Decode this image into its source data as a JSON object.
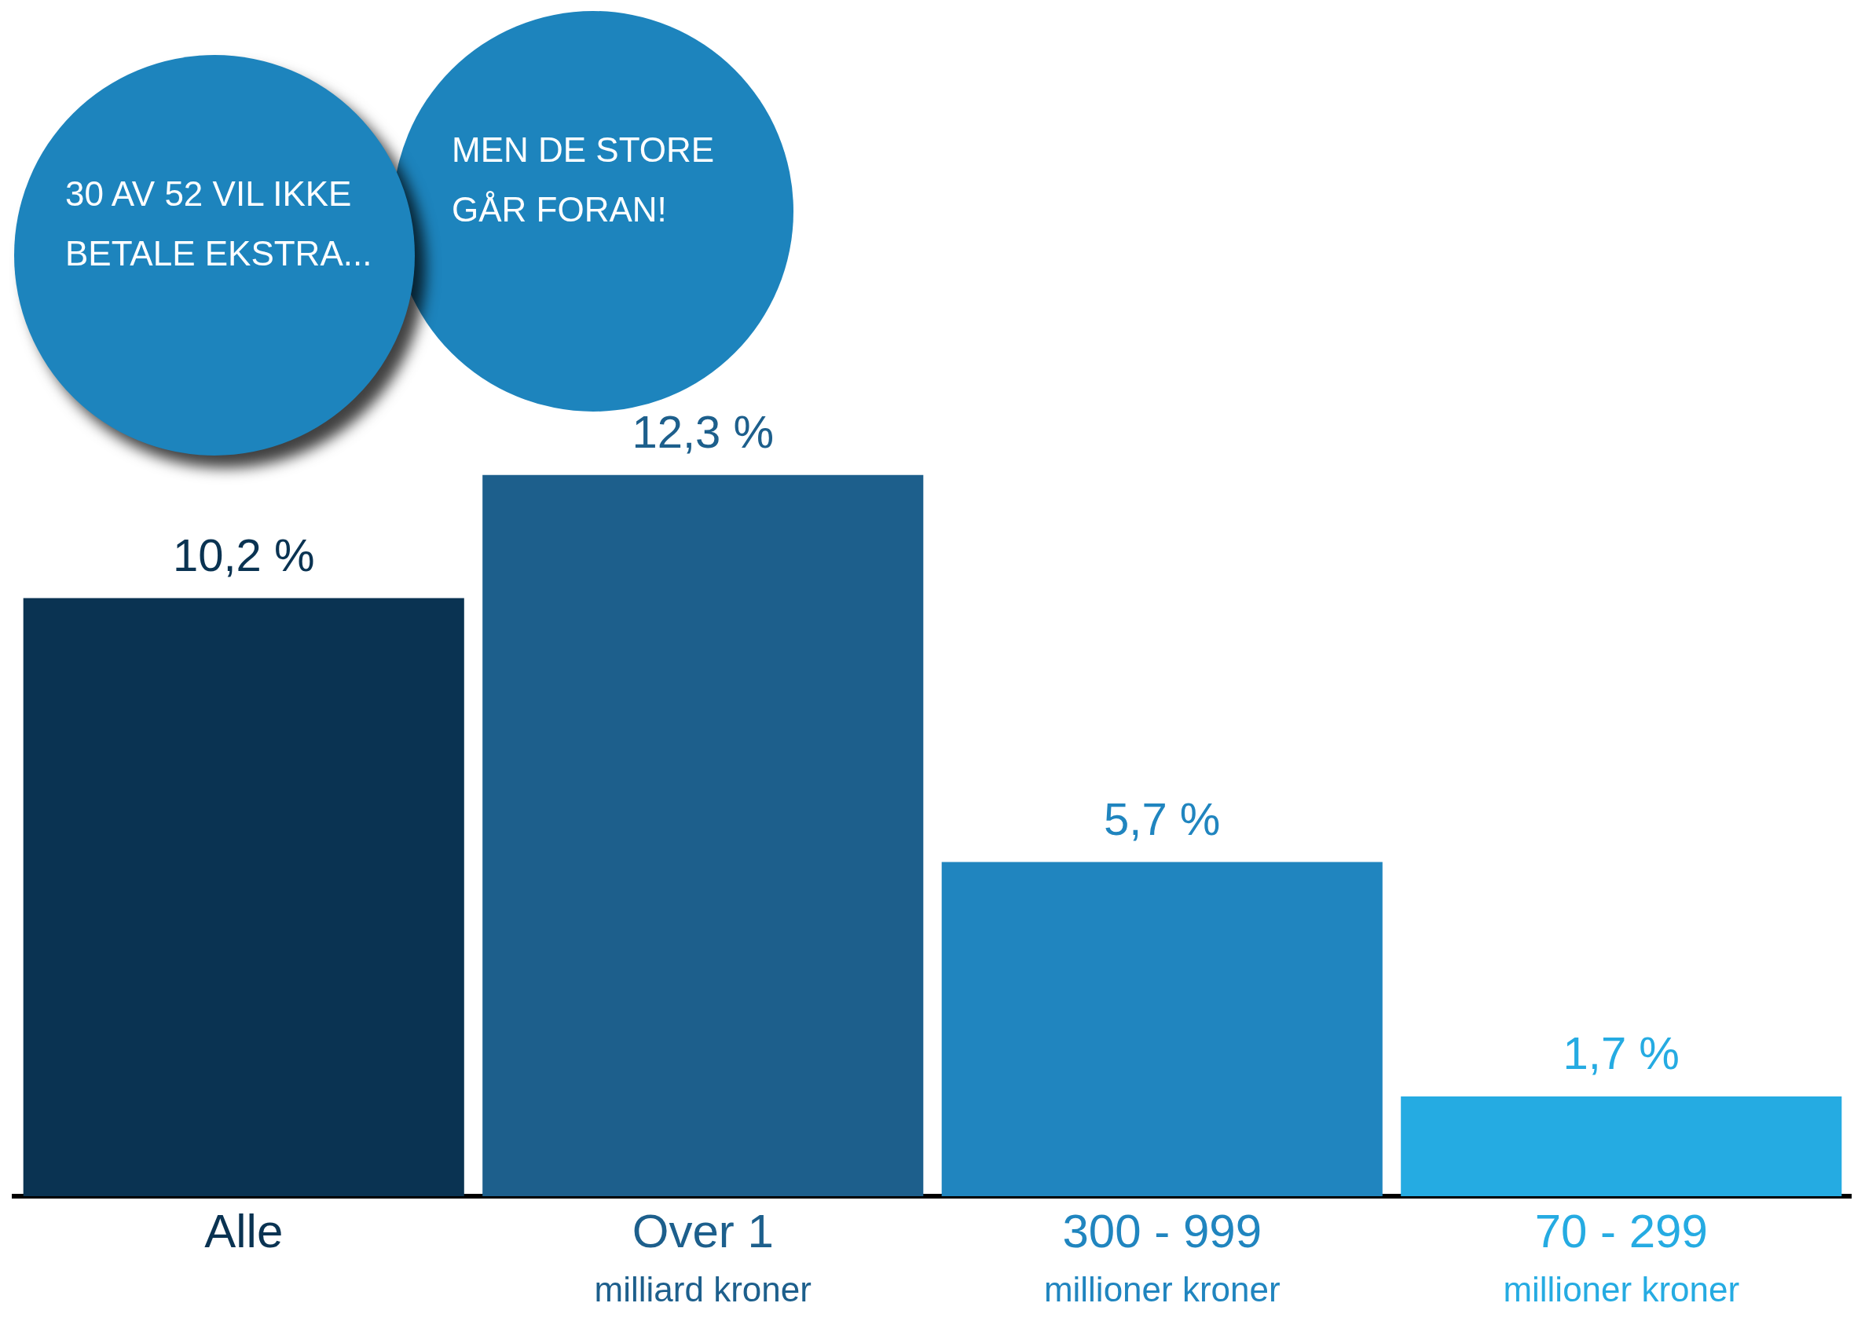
{
  "chart_data": {
    "type": "bar",
    "categories": [
      "Alle",
      "Over 1\nmilliard kroner",
      "300 - 999\nmillioner kroner",
      "70 - 299\nmillioner kroner"
    ],
    "values": [
      10.2,
      12.3,
      5.7,
      1.7
    ],
    "colors": [
      "#0a3352",
      "#1d5f8c",
      "#2085bf",
      "#25abe2"
    ],
    "value_labels": [
      "10,2 %",
      "12,3 %",
      "5,7 %",
      "1,7 %"
    ],
    "annotations": [
      "30 AV 52 VIL IKKE BETALE EKSTRA...",
      "MEN DE STORE GÅR FORAN!"
    ],
    "legend": false
  }
}
